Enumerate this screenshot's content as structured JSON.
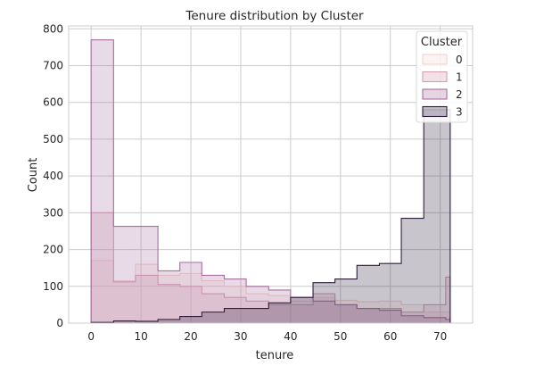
{
  "chart_data": {
    "type": "histogram",
    "title": "Tenure distribution by Cluster",
    "xlabel": "tenure",
    "ylabel": "Count",
    "xlim": [
      -4.5,
      76.5
    ],
    "ylim": [
      0,
      808
    ],
    "xticks": [
      0,
      10,
      20,
      30,
      40,
      50,
      60,
      70
    ],
    "yticks": [
      0,
      100,
      200,
      300,
      400,
      500,
      600,
      700,
      800
    ],
    "bin_edges": [
      0,
      4.5,
      8.9,
      13.4,
      17.8,
      22.2,
      26.7,
      31.1,
      35.6,
      40.0,
      44.5,
      48.9,
      53.3,
      57.8,
      62.2,
      66.7,
      71.1,
      72.0
    ],
    "grid": true,
    "legend": {
      "title": "Cluster",
      "placement": "top-right"
    },
    "series": [
      {
        "name": "0",
        "color": "#f2d3cf",
        "values": [
          170,
          115,
          160,
          130,
          135,
          115,
          100,
          80,
          75,
          60,
          70,
          62,
          58,
          60,
          50,
          30,
          30
        ]
      },
      {
        "name": "1",
        "color": "#d49fb4",
        "values": [
          300,
          112,
          130,
          105,
          100,
          80,
          70,
          60,
          50,
          50,
          80,
          50,
          40,
          40,
          30,
          50,
          125
        ]
      },
      {
        "name": "2",
        "color": "#a86f9f",
        "values": [
          770,
          263,
          263,
          142,
          165,
          130,
          120,
          100,
          90,
          70,
          60,
          50,
          40,
          35,
          20,
          15,
          10
        ]
      },
      {
        "name": "3",
        "color": "#2d1e3e",
        "values": [
          2,
          6,
          5,
          10,
          18,
          30,
          40,
          40,
          55,
          70,
          110,
          120,
          157,
          162,
          285,
          580,
          580
        ]
      }
    ]
  }
}
